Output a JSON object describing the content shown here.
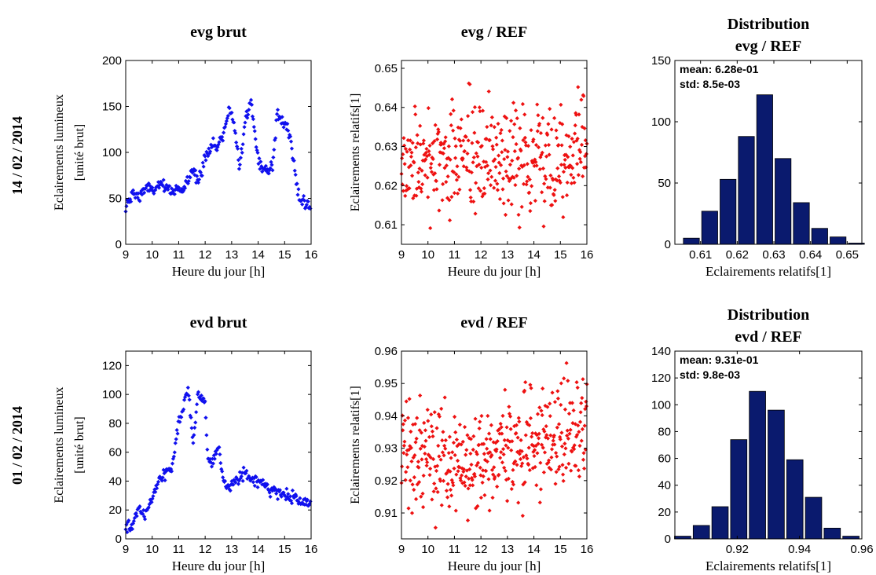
{
  "rows": [
    {
      "label": "14 / 02 / 2014"
    },
    {
      "label": "01 / 02 / 2014"
    }
  ],
  "colors": {
    "raw": "#1010ee",
    "ratio": "#ee1111",
    "hist": "#0a1a6e",
    "axis": "#000000"
  },
  "chart_data": [
    {
      "id": "evg-brut",
      "type": "scatter",
      "title": [
        "evg brut"
      ],
      "xlabel": "Heure du jour [h]",
      "ylabel": [
        "Eclairements lumineux",
        "[unité brut]"
      ],
      "xlim": [
        9,
        16
      ],
      "ylim": [
        0,
        200
      ],
      "xticks": [
        "9",
        "10",
        "11",
        "12",
        "13",
        "14",
        "15",
        "16"
      ],
      "yticks": [
        "0",
        "50",
        "100",
        "150",
        "200"
      ],
      "color": "#1010ee",
      "profile": [
        [
          9,
          38
        ],
        [
          9.25,
          55
        ],
        [
          9.5,
          52
        ],
        [
          9.75,
          62
        ],
        [
          10,
          58
        ],
        [
          10.25,
          65
        ],
        [
          10.5,
          60
        ],
        [
          10.75,
          58
        ],
        [
          11,
          62
        ],
        [
          11.2,
          58
        ],
        [
          11.5,
          80
        ],
        [
          11.75,
          72
        ],
        [
          12,
          95
        ],
        [
          12.25,
          108
        ],
        [
          12.45,
          105
        ],
        [
          12.7,
          120
        ],
        [
          12.9,
          150
        ],
        [
          13.1,
          130
        ],
        [
          13.3,
          85
        ],
        [
          13.5,
          135
        ],
        [
          13.75,
          155
        ],
        [
          13.9,
          110
        ],
        [
          14.1,
          85
        ],
        [
          14.35,
          80
        ],
        [
          14.55,
          85
        ],
        [
          14.7,
          140
        ],
        [
          14.95,
          135
        ],
        [
          15.15,
          125
        ],
        [
          15.35,
          85
        ],
        [
          15.55,
          50
        ],
        [
          15.8,
          48
        ],
        [
          16,
          38
        ]
      ],
      "noise": 7
    },
    {
      "id": "evg-ref",
      "type": "scatter",
      "title": [
        "evg / REF"
      ],
      "xlabel": "Heure du jour [h]",
      "ylabel": [
        "Eclairements relatifs[1]"
      ],
      "xlim": [
        9,
        16
      ],
      "ylim": [
        0.605,
        0.652
      ],
      "xticks": [
        "9",
        "10",
        "11",
        "12",
        "13",
        "14",
        "15",
        "16"
      ],
      "yticks": [
        "0.61",
        "0.62",
        "0.63",
        "0.64",
        "0.65"
      ],
      "color": "#ee1111",
      "center": 0.628,
      "std": 0.0085,
      "trend": [
        [
          9,
          0.626
        ],
        [
          12,
          0.627
        ],
        [
          13.5,
          0.626
        ],
        [
          16,
          0.63
        ]
      ],
      "count": 400
    },
    {
      "id": "evg-dist",
      "type": "bar",
      "title": [
        "Distribution",
        "evg / REF"
      ],
      "xlabel": "Eclairements relatifs[1]",
      "xlim": [
        0.603,
        0.654
      ],
      "ylim": [
        0,
        150
      ],
      "xticks": [
        "0.61",
        "0.62",
        "0.63",
        "0.64",
        "0.65"
      ],
      "yticks": [
        "0",
        "50",
        "100",
        "150"
      ],
      "color": "#0a1a6e",
      "bin_centers": [
        0.6075,
        0.6125,
        0.6175,
        0.6225,
        0.6275,
        0.6325,
        0.6375,
        0.6425,
        0.6475,
        0.6525
      ],
      "bin_width": 0.005,
      "counts": [
        5,
        27,
        53,
        88,
        122,
        70,
        34,
        13,
        6,
        1
      ],
      "annotation": [
        "mean: 6.28e-01",
        "std: 8.5e-03"
      ]
    },
    {
      "id": "evd-brut",
      "type": "scatter",
      "title": [
        "evd brut"
      ],
      "xlabel": "Heure du jour [h]",
      "ylabel": [
        "Eclairements lumineux",
        "[unité brut]"
      ],
      "xlim": [
        9,
        16
      ],
      "ylim": [
        0,
        130
      ],
      "xticks": [
        "9",
        "10",
        "11",
        "12",
        "13",
        "14",
        "15",
        "16"
      ],
      "yticks": [
        "0",
        "20",
        "40",
        "60",
        "80",
        "100",
        "120"
      ],
      "color": "#1010ee",
      "profile": [
        [
          9,
          7
        ],
        [
          9.25,
          10
        ],
        [
          9.5,
          20
        ],
        [
          9.75,
          18
        ],
        [
          10,
          28
        ],
        [
          10.25,
          40
        ],
        [
          10.5,
          45
        ],
        [
          10.75,
          50
        ],
        [
          11,
          80
        ],
        [
          11.15,
          88
        ],
        [
          11.35,
          105
        ],
        [
          11.55,
          65
        ],
        [
          11.7,
          98
        ],
        [
          12,
          95
        ],
        [
          12.1,
          55
        ],
        [
          12.3,
          52
        ],
        [
          12.5,
          65
        ],
        [
          12.7,
          38
        ],
        [
          12.9,
          35
        ],
        [
          13.1,
          40
        ],
        [
          13.5,
          45
        ],
        [
          13.7,
          42
        ],
        [
          14,
          40
        ],
        [
          14.5,
          35
        ],
        [
          15,
          30
        ],
        [
          15.5,
          27
        ],
        [
          16,
          24
        ]
      ],
      "noise": 4
    },
    {
      "id": "evd-ref",
      "type": "scatter",
      "title": [
        "evd / REF"
      ],
      "xlabel": "Heure du jour [h]",
      "ylabel": [
        "Eclairements relatifs[1]"
      ],
      "xlim": [
        9,
        16
      ],
      "ylim": [
        0.902,
        0.96
      ],
      "xticks": [
        "9",
        "10",
        "11",
        "12",
        "13",
        "14",
        "15",
        "16"
      ],
      "yticks": [
        "0.91",
        "0.92",
        "0.93",
        "0.94",
        "0.95",
        "0.96"
      ],
      "color": "#ee1111",
      "center": 0.931,
      "std": 0.0098,
      "trend": [
        [
          9,
          0.928
        ],
        [
          12,
          0.926
        ],
        [
          13,
          0.93
        ],
        [
          16,
          0.937
        ]
      ],
      "count": 420
    },
    {
      "id": "evd-dist",
      "type": "bar",
      "title": [
        "Distribution",
        "evd / REF"
      ],
      "xlabel": "Eclairements relatifs[1]",
      "xlim": [
        0.9,
        0.96
      ],
      "ylim": [
        0,
        140
      ],
      "xticks": [
        "0.92",
        "0.94",
        "0.96"
      ],
      "yticks": [
        "0",
        "20",
        "40",
        "60",
        "80",
        "100",
        "120",
        "140"
      ],
      "color": "#0a1a6e",
      "bin_centers": [
        0.9025,
        0.9085,
        0.9145,
        0.9205,
        0.9265,
        0.9325,
        0.9385,
        0.9445,
        0.9505,
        0.9565
      ],
      "bin_width": 0.006,
      "counts": [
        2,
        10,
        24,
        74,
        110,
        96,
        59,
        31,
        8,
        2
      ],
      "annotation": [
        "mean: 9.31e-01",
        "std: 9.8e-03"
      ]
    }
  ]
}
